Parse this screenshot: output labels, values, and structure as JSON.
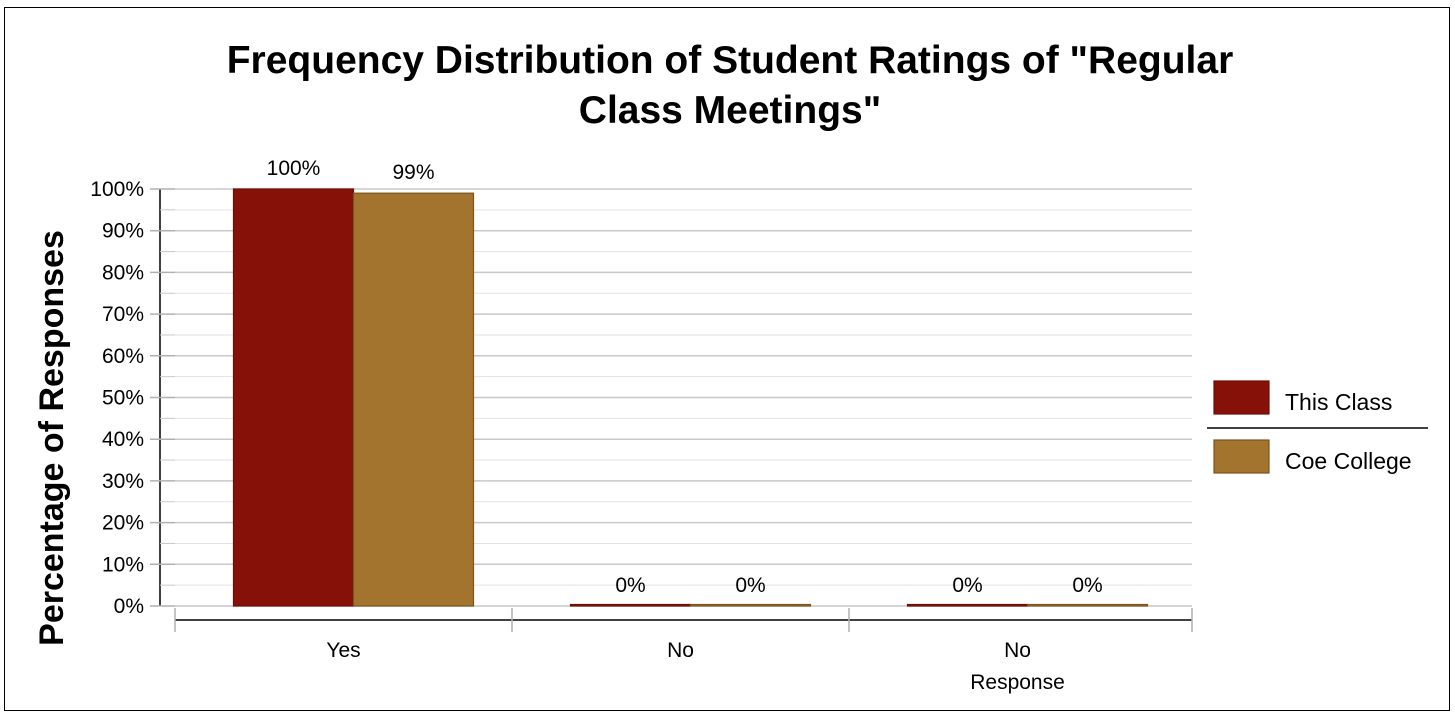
{
  "chart_data": {
    "type": "bar",
    "title_lines": [
      "Frequency Distribution of Student Ratings of \"Regular",
      "Class Meetings\""
    ],
    "ylabel": "Percentage of Responses",
    "xlabel": "",
    "categories": [
      [
        "Yes"
      ],
      [
        "No"
      ],
      [
        "No",
        "Response"
      ]
    ],
    "series": [
      {
        "name": "This Class",
        "values": [
          100,
          0,
          0
        ],
        "color": "#861108",
        "stroke": "#6e0d06"
      },
      {
        "name": "Coe College",
        "values": [
          99,
          0,
          0
        ],
        "color": "#a2742e",
        "stroke": "#7a5520"
      }
    ],
    "data_labels": [
      [
        "100%",
        "0%",
        "0%"
      ],
      [
        "99%",
        "0%",
        "0%"
      ]
    ],
    "ylim": [
      0,
      100
    ],
    "yticks": [
      0,
      10,
      20,
      30,
      40,
      50,
      60,
      70,
      80,
      90,
      100
    ],
    "ytick_labels": [
      "0%",
      "10%",
      "20%",
      "30%",
      "40%",
      "50%",
      "60%",
      "70%",
      "80%",
      "90%",
      "100%"
    ],
    "grid": true,
    "legend_position": "right"
  }
}
